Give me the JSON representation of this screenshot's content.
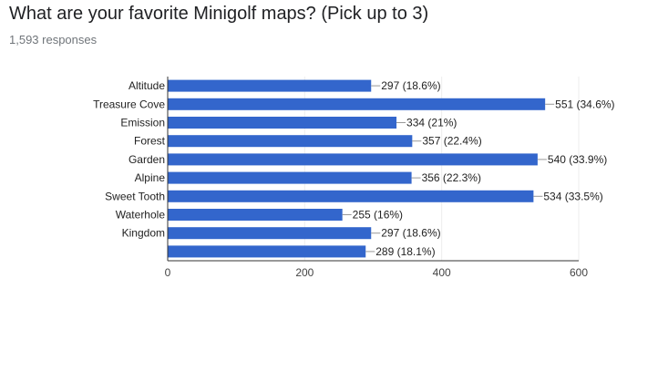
{
  "question": {
    "title": "What are your favorite Minigolf maps? (Pick up to 3)",
    "responses": "1,593 responses"
  },
  "colors": {
    "bar": "#3366cc",
    "grid": "#eeeeee",
    "axis": "#333333"
  },
  "chart_data": {
    "type": "bar",
    "orientation": "horizontal",
    "categories": [
      "Altitude",
      "Treasure Cove",
      "Emission",
      "Forest",
      "Garden",
      "Alpine",
      "Sweet Tooth",
      "Waterhole",
      "Kingdom",
      ""
    ],
    "values": [
      297,
      551,
      334,
      357,
      540,
      356,
      534,
      255,
      297,
      289
    ],
    "value_labels": [
      "297 (18.6%)",
      "551 (34.6%)",
      "334 (21%)",
      "357 (22.4%)",
      "540 (33.9%)",
      "356 (22.3%)",
      "534 (33.5%)",
      "255 (16%)",
      "297 (18.6%)",
      "289 (18.1%)"
    ],
    "xlim": [
      0,
      600
    ],
    "xticks": [
      0,
      200,
      400,
      600
    ],
    "grid": true,
    "legend": "none"
  }
}
